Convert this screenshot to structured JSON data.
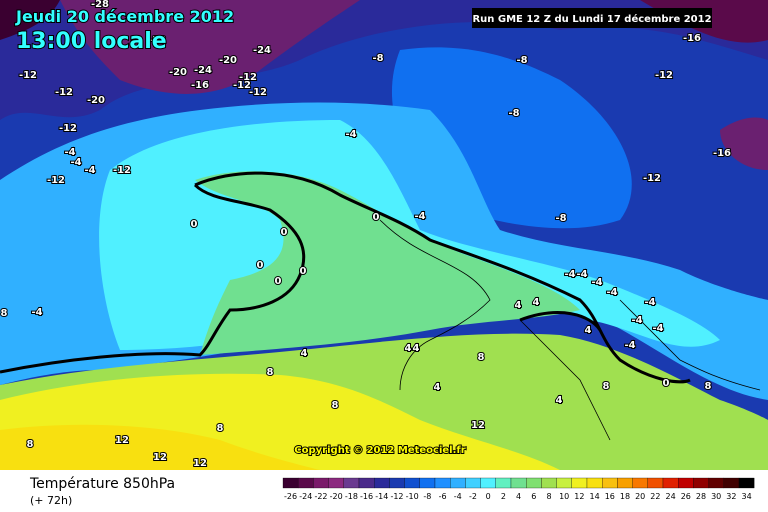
{
  "header": {
    "date": "Jeudi 20 décembre 2012",
    "time": "13:00 locale",
    "run": "Run GME 12 Z du Lundi 17 décembre 2012"
  },
  "map": {
    "copyright": "Copyright © 2012 Meteociel.fr",
    "labels": [
      -28,
      -28,
      -24,
      -20,
      -20,
      -24,
      -12,
      -16,
      -12,
      -12,
      -12,
      -12,
      -20,
      -12,
      -4,
      -4,
      -4,
      -12,
      -12,
      -8,
      -8,
      -8,
      -16,
      -12,
      -16,
      -12,
      -4,
      0,
      -4,
      -8,
      0,
      0,
      0,
      0,
      0,
      -4,
      8,
      -4,
      -4,
      -4,
      4,
      4,
      -4,
      -4,
      -4,
      -4,
      -4,
      4,
      4,
      4,
      4,
      8,
      8,
      4,
      8,
      4,
      8,
      0,
      8,
      8,
      12,
      8,
      12,
      12,
      12
    ]
  },
  "legend": {
    "title": "Température 850hPa",
    "lead": "(+ 72h)",
    "values": [
      -26,
      -24,
      -22,
      -20,
      -18,
      -16,
      -14,
      -12,
      -10,
      -8,
      -6,
      -4,
      -2,
      0,
      2,
      4,
      6,
      8,
      10,
      12,
      14,
      16,
      18,
      20,
      22,
      24,
      26,
      28,
      30,
      32,
      34
    ],
    "colors": [
      "#3a0030",
      "#5a0a4a",
      "#7a1a6a",
      "#8c2a80",
      "#6a3a90",
      "#4a2a8a",
      "#2a2a9a",
      "#1a3ab0",
      "#1050d0",
      "#1070f0",
      "#2090ff",
      "#30b0ff",
      "#40d0ff",
      "#50f0ff",
      "#60f0c0",
      "#70e090",
      "#80e070",
      "#a0e050",
      "#c8f040",
      "#f0f020",
      "#f8e010",
      "#f8c010",
      "#f8a000",
      "#f87800",
      "#f05000",
      "#e02000",
      "#c00000",
      "#900000",
      "#600000",
      "#400000",
      "#000000"
    ]
  }
}
